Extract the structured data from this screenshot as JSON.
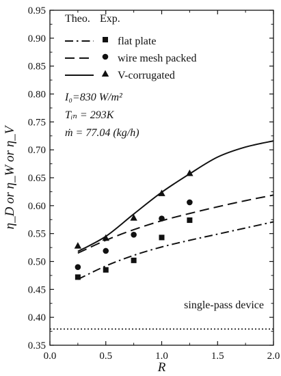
{
  "chart_data": {
    "type": "line",
    "xlabel": "R",
    "ylabel": "η_D or η_W or η_V",
    "xlim": [
      0.0,
      2.0
    ],
    "ylim": [
      0.35,
      0.95
    ],
    "xticks": [
      "0.0",
      "0.5",
      "1.0",
      "1.5",
      "2.0"
    ],
    "yticks": [
      "0.35",
      "0.40",
      "0.45",
      "0.50",
      "0.55",
      "0.60",
      "0.65",
      "0.70",
      "0.75",
      "0.80",
      "0.85",
      "0.90",
      "0.95"
    ],
    "legend": {
      "placement": "top-left",
      "header_theo": "Theo.",
      "header_exp": "Exp.",
      "entries": [
        "flat plate",
        "wire mesh packed",
        "V-corrugated"
      ]
    },
    "annotations": {
      "i0": "I₀=830 W/m²",
      "tin": "Tᵢₙ = 293K",
      "mdot": "ṁ = 77.04 (kg/h)",
      "single_pass": "single-pass device"
    },
    "series": [
      {
        "name": "flat plate",
        "dash": "dashdot",
        "marker": "square",
        "theory_x": [
          0.25,
          0.5,
          0.75,
          1.0,
          1.25,
          1.5,
          1.75,
          2.0
        ],
        "theory_y": [
          0.468,
          0.492,
          0.511,
          0.526,
          0.538,
          0.549,
          0.56,
          0.571
        ],
        "exp_x": [
          0.25,
          0.5,
          0.75,
          1.0,
          1.25
        ],
        "exp_y": [
          0.472,
          0.485,
          0.502,
          0.543,
          0.574
        ]
      },
      {
        "name": "wire mesh packed",
        "dash": "dashed",
        "marker": "circle",
        "theory_x": [
          0.25,
          0.5,
          0.75,
          1.0,
          1.25,
          1.5,
          1.75,
          2.0
        ],
        "theory_y": [
          0.515,
          0.538,
          0.557,
          0.573,
          0.586,
          0.598,
          0.609,
          0.619
        ],
        "exp_x": [
          0.25,
          0.5,
          0.75,
          1.0,
          1.25
        ],
        "exp_y": [
          0.49,
          0.519,
          0.548,
          0.577,
          0.606
        ]
      },
      {
        "name": "V-corrugated",
        "dash": "solid",
        "marker": "triangle",
        "theory_x": [
          0.25,
          0.5,
          0.75,
          1.0,
          1.25,
          1.5,
          1.75,
          2.0
        ],
        "theory_y": [
          0.518,
          0.545,
          0.585,
          0.624,
          0.657,
          0.687,
          0.705,
          0.716
        ],
        "exp_x": [
          0.25,
          0.5,
          0.75,
          1.0,
          1.25
        ],
        "exp_y": [
          0.528,
          0.542,
          0.578,
          0.622,
          0.658
        ]
      }
    ],
    "reference_line": {
      "y": 0.379,
      "style": "dotted"
    }
  }
}
